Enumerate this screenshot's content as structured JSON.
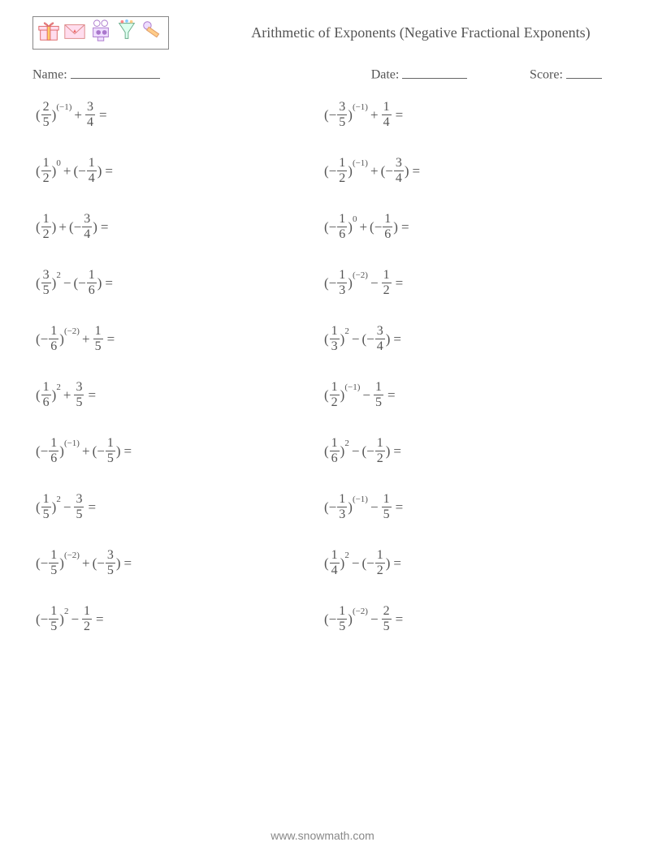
{
  "title": "Arithmetic of Exponents (Negative Fractional Exponents)",
  "meta": {
    "name_label": "Name:",
    "date_label": "Date:",
    "score_label": "Score:",
    "name_line_w": 110,
    "date_line_w": 80,
    "score_line_w": 44
  },
  "footer": "www.snowmath.com",
  "colors": {
    "text": "#555555",
    "bg": "#ffffff",
    "line": "#666666"
  },
  "icons": [
    "gift",
    "envelope",
    "camera",
    "funnel",
    "mic"
  ],
  "problems": {
    "left": [
      {
        "base_neg": false,
        "bn": "2",
        "bd": "5",
        "exp": "(−1)",
        "op": "+",
        "t2_neg": false,
        "tn": "3",
        "td": "4"
      },
      {
        "base_neg": false,
        "bn": "1",
        "bd": "2",
        "exp": "0",
        "op": "+",
        "t2_neg": true,
        "tn": "1",
        "td": "4"
      },
      {
        "base_neg": false,
        "bn": "1",
        "bd": "2",
        "exp": "",
        "op": "+",
        "t2_neg": true,
        "tn": "3",
        "td": "4"
      },
      {
        "base_neg": false,
        "bn": "3",
        "bd": "5",
        "exp": "2",
        "op": "−",
        "t2_neg": true,
        "tn": "1",
        "td": "6"
      },
      {
        "base_neg": true,
        "bn": "1",
        "bd": "6",
        "exp": "(−2)",
        "op": "+",
        "t2_neg": false,
        "tn": "1",
        "td": "5"
      },
      {
        "base_neg": false,
        "bn": "1",
        "bd": "6",
        "exp": "2",
        "op": "+",
        "t2_neg": false,
        "tn": "3",
        "td": "5"
      },
      {
        "base_neg": true,
        "bn": "1",
        "bd": "6",
        "exp": "(−1)",
        "op": "+",
        "t2_neg": true,
        "tn": "1",
        "td": "5"
      },
      {
        "base_neg": false,
        "bn": "1",
        "bd": "5",
        "exp": "2",
        "op": "−",
        "t2_neg": false,
        "tn": "3",
        "td": "5"
      },
      {
        "base_neg": true,
        "bn": "1",
        "bd": "5",
        "exp": "(−2)",
        "op": "+",
        "t2_neg": true,
        "tn": "3",
        "td": "5"
      },
      {
        "base_neg": true,
        "bn": "1",
        "bd": "5",
        "exp": "2",
        "op": "−",
        "t2_neg": false,
        "tn": "1",
        "td": "2"
      }
    ],
    "right": [
      {
        "base_neg": true,
        "bn": "3",
        "bd": "5",
        "exp": "(−1)",
        "op": "+",
        "t2_neg": false,
        "tn": "1",
        "td": "4"
      },
      {
        "base_neg": true,
        "bn": "1",
        "bd": "2",
        "exp": "(−1)",
        "op": "+",
        "t2_neg": true,
        "tn": "3",
        "td": "4"
      },
      {
        "base_neg": true,
        "bn": "1",
        "bd": "6",
        "exp": "0",
        "op": "+",
        "t2_neg": true,
        "tn": "1",
        "td": "6"
      },
      {
        "base_neg": true,
        "bn": "1",
        "bd": "3",
        "exp": "(−2)",
        "op": "−",
        "t2_neg": false,
        "tn": "1",
        "td": "2"
      },
      {
        "base_neg": false,
        "bn": "1",
        "bd": "3",
        "exp": "2",
        "op": "−",
        "t2_neg": true,
        "tn": "3",
        "td": "4"
      },
      {
        "base_neg": false,
        "bn": "1",
        "bd": "2",
        "exp": "(−1)",
        "op": "−",
        "t2_neg": false,
        "tn": "1",
        "td": "5"
      },
      {
        "base_neg": false,
        "bn": "1",
        "bd": "6",
        "exp": "2",
        "op": "−",
        "t2_neg": true,
        "tn": "1",
        "td": "2"
      },
      {
        "base_neg": true,
        "bn": "1",
        "bd": "3",
        "exp": "(−1)",
        "op": "−",
        "t2_neg": false,
        "tn": "1",
        "td": "5"
      },
      {
        "base_neg": false,
        "bn": "1",
        "bd": "4",
        "exp": "2",
        "op": "−",
        "t2_neg": true,
        "tn": "1",
        "td": "2"
      },
      {
        "base_neg": true,
        "bn": "1",
        "bd": "5",
        "exp": "(−2)",
        "op": "−",
        "t2_neg": false,
        "tn": "2",
        "td": "5"
      }
    ]
  }
}
